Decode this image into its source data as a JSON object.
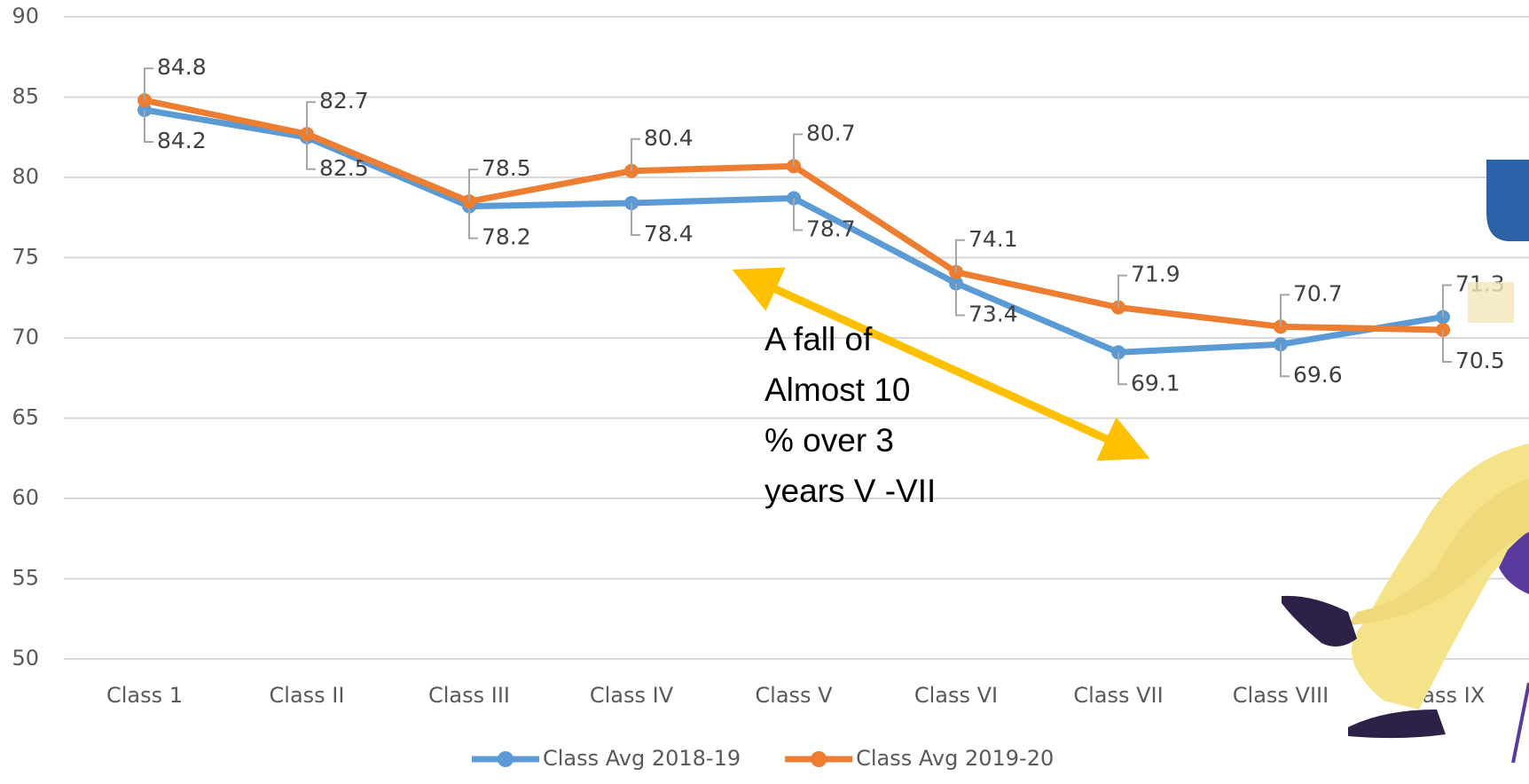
{
  "chart_data": {
    "type": "line",
    "categories": [
      "Class 1",
      "Class II",
      "Class III",
      "Class IV",
      "Class V",
      "Class VI",
      "Class VII",
      "Class VIII",
      "Class IX"
    ],
    "series": [
      {
        "name": "Class Avg 2018-19",
        "color": "#5b9bd5",
        "values": [
          84.2,
          82.5,
          78.2,
          78.4,
          78.7,
          73.4,
          69.1,
          69.6,
          71.3
        ]
      },
      {
        "name": "Class Avg 2019-20",
        "color": "#ed7d31",
        "values": [
          84.8,
          82.7,
          78.5,
          80.4,
          80.7,
          74.1,
          71.9,
          70.7,
          70.5
        ]
      }
    ],
    "ylim": [
      50,
      90
    ],
    "yticks": [
      50,
      55,
      60,
      65,
      70,
      75,
      80,
      85,
      90
    ],
    "grid": true,
    "legend": "bottom",
    "annotation": [
      "A fall of",
      "Almost 10",
      "% over 3",
      "years V -VII"
    ]
  }
}
